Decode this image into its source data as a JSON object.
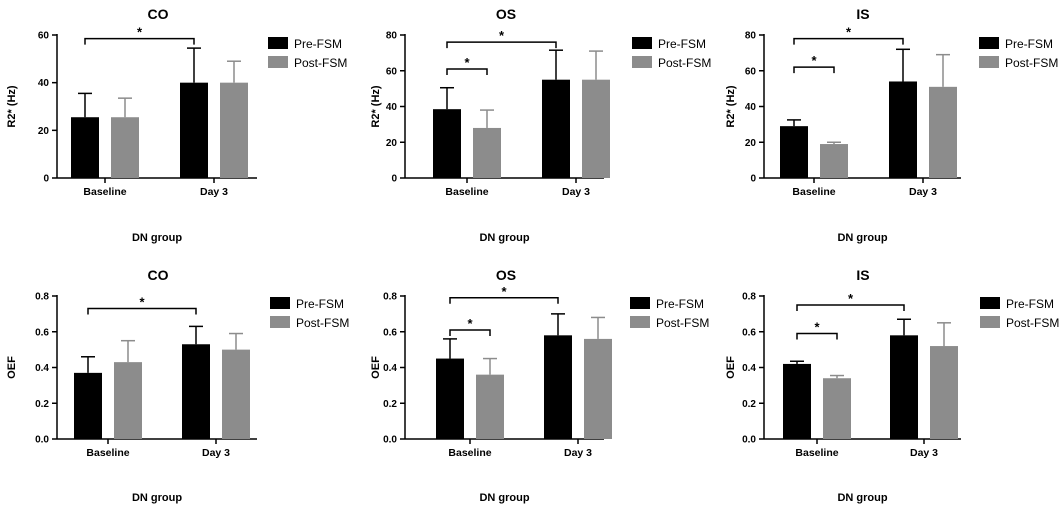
{
  "colors": {
    "pre": "#000000",
    "post": "#8c8c8c",
    "axis": "#000000"
  },
  "chart_data": [
    {
      "type": "bar",
      "title": "CO",
      "ylabel": "R2* (Hz)",
      "xlabel": "DN group",
      "categories": [
        "Baseline",
        "Day 3"
      ],
      "ylim": [
        0,
        60
      ],
      "yticks": [
        0,
        20,
        40,
        60
      ],
      "tick_labels": [
        "0",
        "20",
        "40",
        "60"
      ],
      "legend": "top-right",
      "series": [
        {
          "name": "Pre-FSM",
          "values": [
            25.5,
            40
          ],
          "errors": [
            10,
            14.5
          ]
        },
        {
          "name": "Post-FSM",
          "values": [
            25.5,
            40
          ],
          "errors": [
            8,
            9
          ]
        }
      ],
      "significance": [
        {
          "from": [
            0,
            0
          ],
          "to": [
            1,
            0
          ],
          "y": 58.5,
          "label": "*"
        }
      ]
    },
    {
      "type": "bar",
      "title": "OS",
      "ylabel": "R2* (Hz)",
      "xlabel": "DN group",
      "categories": [
        "Baseline",
        "Day 3"
      ],
      "ylim": [
        0,
        80
      ],
      "yticks": [
        0,
        20,
        40,
        60,
        80
      ],
      "tick_labels": [
        "0",
        "20",
        "40",
        "60",
        "80"
      ],
      "legend": "top-right",
      "series": [
        {
          "name": "Pre-FSM",
          "values": [
            38.5,
            55
          ],
          "errors": [
            12,
            16.5
          ]
        },
        {
          "name": "Post-FSM",
          "values": [
            28,
            55
          ],
          "errors": [
            10,
            16
          ]
        }
      ],
      "significance": [
        {
          "from": [
            0,
            0
          ],
          "to": [
            1,
            0
          ],
          "y": 76,
          "label": "*"
        },
        {
          "from": [
            0,
            0
          ],
          "to": [
            0,
            1
          ],
          "y": 61,
          "label": "*"
        }
      ]
    },
    {
      "type": "bar",
      "title": "IS",
      "ylabel": "R2* (Hz)",
      "xlabel": "DN group",
      "categories": [
        "Baseline",
        "Day 3"
      ],
      "ylim": [
        0,
        80
      ],
      "yticks": [
        0,
        20,
        40,
        60,
        80
      ],
      "tick_labels": [
        "0",
        "20",
        "40",
        "60",
        "80"
      ],
      "legend": "top-right",
      "series": [
        {
          "name": "Pre-FSM",
          "values": [
            29,
            54
          ],
          "errors": [
            3.5,
            18
          ]
        },
        {
          "name": "Post-FSM",
          "values": [
            19,
            51
          ],
          "errors": [
            1,
            18
          ]
        }
      ],
      "significance": [
        {
          "from": [
            0,
            0
          ],
          "to": [
            1,
            0
          ],
          "y": 78,
          "label": "*"
        },
        {
          "from": [
            0,
            0
          ],
          "to": [
            0,
            1
          ],
          "y": 62,
          "label": "*"
        }
      ]
    },
    {
      "type": "bar",
      "title": "CO",
      "ylabel": "OEF",
      "xlabel": "DN group",
      "categories": [
        "Baseline",
        "Day 3"
      ],
      "ylim": [
        0,
        0.8
      ],
      "yticks": [
        0,
        0.2,
        0.4,
        0.6,
        0.8
      ],
      "tick_labels": [
        "0.0",
        "0.2",
        "0.4",
        "0.6",
        "0.8"
      ],
      "legend": "top-right",
      "series": [
        {
          "name": "Pre-FSM",
          "values": [
            0.37,
            0.53
          ],
          "errors": [
            0.09,
            0.1
          ]
        },
        {
          "name": "Post-FSM",
          "values": [
            0.43,
            0.5
          ],
          "errors": [
            0.12,
            0.09
          ]
        }
      ],
      "significance": [
        {
          "from": [
            0,
            0
          ],
          "to": [
            1,
            0
          ],
          "y": 0.73,
          "label": "*"
        }
      ]
    },
    {
      "type": "bar",
      "title": "OS",
      "ylabel": "OEF",
      "xlabel": "DN group",
      "categories": [
        "Baseline",
        "Day 3"
      ],
      "ylim": [
        0,
        0.8
      ],
      "yticks": [
        0,
        0.2,
        0.4,
        0.6,
        0.8
      ],
      "tick_labels": [
        "0.0",
        "0.2",
        "0.4",
        "0.6",
        "0.8"
      ],
      "legend": "top-right",
      "series": [
        {
          "name": "Pre-FSM",
          "values": [
            0.45,
            0.58
          ],
          "errors": [
            0.11,
            0.12
          ]
        },
        {
          "name": "Post-FSM",
          "values": [
            0.36,
            0.56
          ],
          "errors": [
            0.09,
            0.12
          ]
        }
      ],
      "significance": [
        {
          "from": [
            0,
            0
          ],
          "to": [
            1,
            0
          ],
          "y": 0.79,
          "label": "*"
        },
        {
          "from": [
            0,
            0
          ],
          "to": [
            0,
            1
          ],
          "y": 0.61,
          "label": "*"
        }
      ]
    },
    {
      "type": "bar",
      "title": "IS",
      "ylabel": "OEF",
      "xlabel": "DN group",
      "categories": [
        "Baseline",
        "Day 3"
      ],
      "ylim": [
        0,
        0.8
      ],
      "yticks": [
        0,
        0.2,
        0.4,
        0.6,
        0.8
      ],
      "tick_labels": [
        "0.0",
        "0.2",
        "0.4",
        "0.6",
        "0.8"
      ],
      "legend": "top-right",
      "series": [
        {
          "name": "Pre-FSM",
          "values": [
            0.42,
            0.58
          ],
          "errors": [
            0.015,
            0.09
          ]
        },
        {
          "name": "Post-FSM",
          "values": [
            0.34,
            0.52
          ],
          "errors": [
            0.015,
            0.13
          ]
        }
      ],
      "significance": [
        {
          "from": [
            0,
            0
          ],
          "to": [
            1,
            0
          ],
          "y": 0.75,
          "label": "*"
        },
        {
          "from": [
            0,
            0
          ],
          "to": [
            0,
            1
          ],
          "y": 0.59,
          "label": "*"
        }
      ]
    }
  ]
}
